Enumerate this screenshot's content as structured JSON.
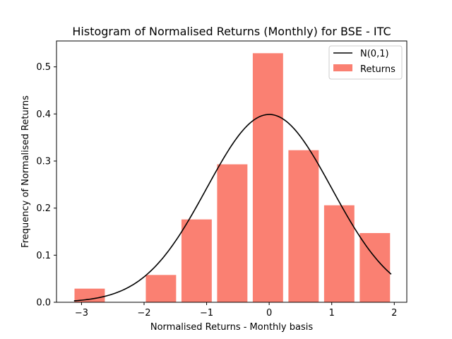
{
  "chart_data": {
    "type": "bar",
    "title": "Histogram of Normalised Returns (Monthly) for BSE - ITC",
    "xlabel": "Normalised Returns - Monthly basis",
    "ylabel": "Frequency of Normalised Returns",
    "xlim": [
      -3.4,
      2.2
    ],
    "ylim": [
      0,
      0.555
    ],
    "xticks": [
      -3,
      -2,
      -1,
      0,
      1,
      2
    ],
    "xtick_labels": [
      "−3",
      "−2",
      "−1",
      "0",
      "1",
      "2"
    ],
    "yticks": [
      0.0,
      0.1,
      0.2,
      0.3,
      0.4,
      0.5
    ],
    "ytick_labels": [
      "0.0",
      "0.1",
      "0.2",
      "0.3",
      "0.4",
      "0.5"
    ],
    "bar_color": "#fa8072",
    "line_color": "#000000",
    "bin_width": 0.57,
    "bar_fill_ratio": 0.85,
    "bins": [
      {
        "center": -2.87,
        "value": 0.029
      },
      {
        "center": -2.3,
        "value": 0.0
      },
      {
        "center": -1.73,
        "value": 0.058
      },
      {
        "center": -1.16,
        "value": 0.176
      },
      {
        "center": -0.59,
        "value": 0.293
      },
      {
        "center": -0.02,
        "value": 0.529
      },
      {
        "center": 0.55,
        "value": 0.323
      },
      {
        "center": 1.12,
        "value": 0.206
      },
      {
        "center": 1.69,
        "value": 0.147
      }
    ],
    "curve": {
      "type": "normal_pdf",
      "mean": 0,
      "std": 1,
      "x_range": [
        -3.12,
        1.95
      ]
    },
    "legend": {
      "position": "top-right",
      "entries": [
        {
          "label": "N(0,1)",
          "kind": "line"
        },
        {
          "label": "Returns",
          "kind": "patch"
        }
      ]
    }
  }
}
